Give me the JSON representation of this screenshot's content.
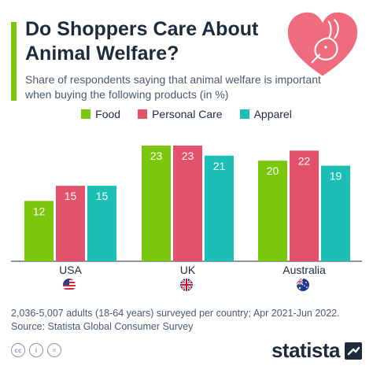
{
  "header": {
    "title": "Do Shoppers Care About Animal Welfare?",
    "subtitle": "Share of respondents saying that animal welfare is important when buying the following products (in %)"
  },
  "icons": {
    "heart": "heart-rabbit-icon",
    "brand": "statista-logo-icon"
  },
  "colors": {
    "food": "#7ac70c",
    "personal_care": "#e3526b",
    "apparel": "#1bbfb5",
    "accent": "#7ac70c",
    "heart": "#ef6b7e"
  },
  "chart_data": {
    "type": "bar",
    "categories": [
      "USA",
      "UK",
      "Australia"
    ],
    "series": [
      {
        "name": "Food",
        "values": [
          12,
          23,
          20
        ]
      },
      {
        "name": "Personal Care",
        "values": [
          15,
          23,
          22
        ]
      },
      {
        "name": "Apparel",
        "values": [
          15,
          21,
          19
        ]
      }
    ],
    "ylim": [
      0,
      23
    ],
    "grid": false,
    "legend_position": "top-center",
    "data_labels": true
  },
  "footer": {
    "note": "2,036-5,007 adults (18-64 years) surveyed per country; Apr 2021-Jun 2022.",
    "source": "Source: Statista Global Consumer Survey",
    "brand": "statista"
  }
}
